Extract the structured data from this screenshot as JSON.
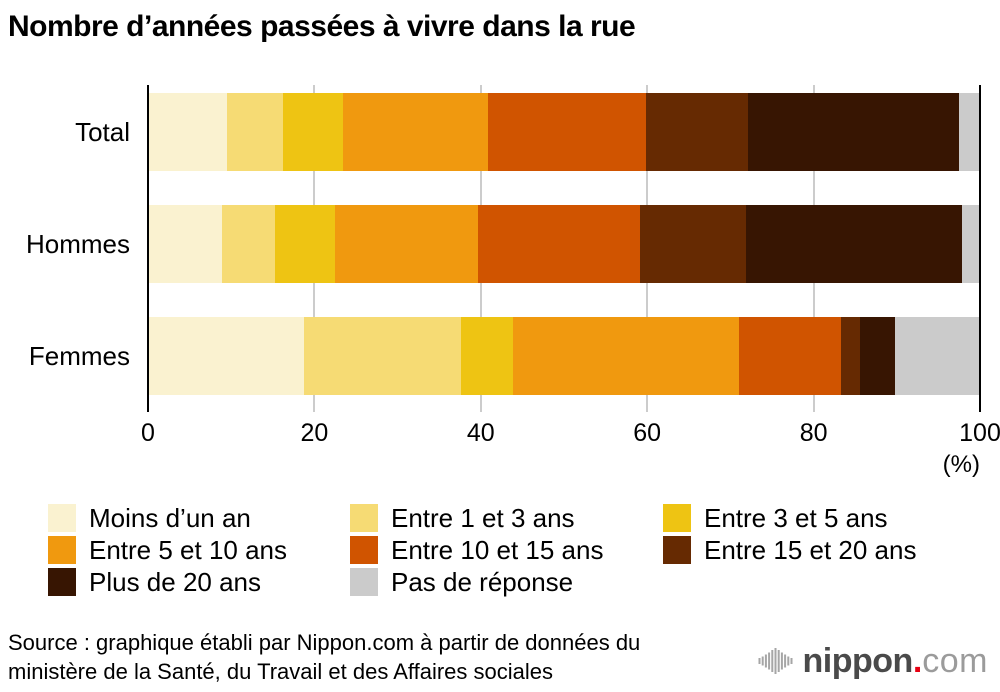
{
  "title": "Nombre d’années passées à vivre dans la rue",
  "axis": {
    "ticks": [
      0,
      20,
      40,
      60,
      80,
      100
    ],
    "unit_label": "(%)",
    "gridline_color": "#cccccc",
    "axisline_color": "#000000"
  },
  "legend": {
    "items": [
      {
        "label": "Moins d’un an",
        "color": "#faf2d0"
      },
      {
        "label": "Entre 1 et 3 ans",
        "color": "#f6db74"
      },
      {
        "label": "Entre 3 et 5 ans",
        "color": "#eec413"
      },
      {
        "label": "Entre 5 et 10 ans",
        "color": "#f0990f"
      },
      {
        "label": "Entre 10 et 15 ans",
        "color": "#d05400"
      },
      {
        "label": "Entre 15 et 20 ans",
        "color": "#662a02"
      },
      {
        "label": "Plus de 20 ans",
        "color": "#371502"
      },
      {
        "label": "Pas de réponse",
        "color": "#cbcbcb"
      }
    ]
  },
  "chart_data": {
    "type": "bar",
    "orientation": "horizontal-stacked",
    "title": "Nombre d’années passées à vivre dans la rue",
    "categories": [
      "Moins d’un an",
      "Entre 1 et 3 ans",
      "Entre 3 et 5 ans",
      "Entre 5 et 10 ans",
      "Entre 10 et 15 ans",
      "Entre 15 et 20 ans",
      "Plus de 20 ans",
      "Pas de réponse"
    ],
    "colors": [
      "#faf2d0",
      "#f6db74",
      "#eec413",
      "#f0990f",
      "#d05400",
      "#662a02",
      "#371502",
      "#cbcbcb"
    ],
    "rows": [
      "Total",
      "Hommes",
      "Femmes"
    ],
    "series": [
      {
        "name": "Total",
        "values": [
          9.5,
          6.7,
          7.2,
          17.5,
          19.0,
          12.2,
          25.4,
          2.5
        ]
      },
      {
        "name": "Hommes",
        "values": [
          8.9,
          6.4,
          7.2,
          17.2,
          19.4,
          12.8,
          25.9,
          2.2
        ]
      },
      {
        "name": "Femmes",
        "values": [
          18.8,
          18.8,
          6.3,
          27.1,
          12.3,
          2.3,
          4.2,
          10.2
        ]
      }
    ],
    "xlabel": "(%)",
    "ylabel": "",
    "xlim": [
      0,
      100
    ],
    "grid": true,
    "legend_position": "bottom"
  },
  "source": {
    "line1": "Source : graphique établi par Nippon.com à partir de données du",
    "line2": "ministère de la Santé, du Travail et des Affaires sociales"
  },
  "logo": {
    "name": "nippon",
    "dot": ".",
    "suffix": "com"
  }
}
